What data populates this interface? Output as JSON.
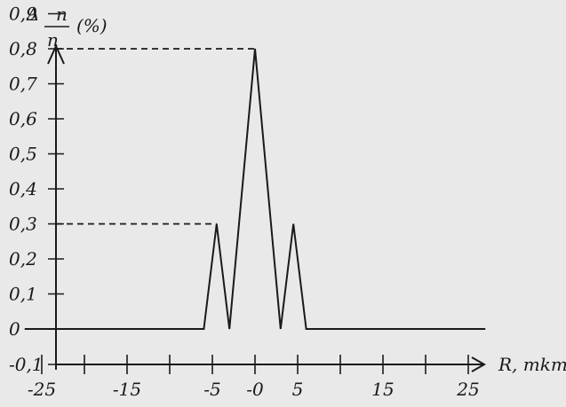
{
  "chart_data": {
    "type": "line",
    "ylabel_delta": "Δ",
    "ylabel_n_top": "n",
    "ylabel_n_bottom": "n",
    "ylabel_unit": "(%)",
    "xlabel": "R, mkm",
    "x_tick_labels": [
      "-25",
      "-15",
      "-5",
      "-0",
      "5",
      "15",
      "25"
    ],
    "y_tick_labels": [
      "0,9",
      "0,8",
      "0,7",
      "0,6",
      "0,5",
      "0,4",
      "0,3",
      "0,2",
      "0,1",
      "0",
      "-0,1"
    ],
    "ylim": [
      -0.1,
      0.9
    ],
    "grid": false,
    "series": [
      {
        "x": [
          -27,
          -6,
          -4.5,
          -3,
          0,
          3,
          4.5,
          6,
          27
        ],
        "values": [
          0,
          0,
          0.3,
          0,
          0.8,
          0,
          0.3,
          0,
          0
        ]
      }
    ],
    "reference_values": [
      0.8,
      0.3
    ]
  }
}
